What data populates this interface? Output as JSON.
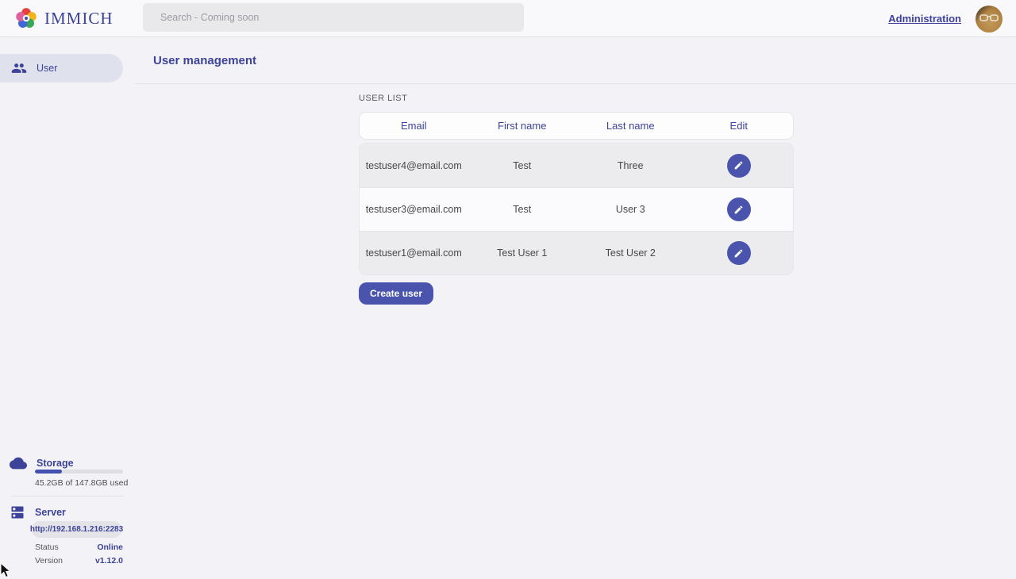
{
  "topbar": {
    "brand": "IMMICH",
    "search_placeholder": "Search - Coming soon",
    "admin_link": "Administration"
  },
  "sidebar": {
    "items": [
      {
        "label": "User"
      }
    ],
    "storage": {
      "title": "Storage",
      "usage_text": "45.2GB of 147.8GB used",
      "percent_used": 30.6
    },
    "server": {
      "title": "Server",
      "url": "http://192.168.1.216:2283",
      "status_label": "Status",
      "status_value": "Online",
      "version_label": "Version",
      "version_value": "v1.12.0"
    }
  },
  "main": {
    "page_title": "User management",
    "section_title": "USER LIST",
    "table": {
      "columns": [
        "Email",
        "First name",
        "Last name",
        "Edit"
      ],
      "rows": [
        {
          "email": "testuser4@email.com",
          "first_name": "Test",
          "last_name": "Three"
        },
        {
          "email": "testuser3@email.com",
          "first_name": "Test",
          "last_name": "User 3"
        },
        {
          "email": "testuser1@email.com",
          "first_name": "Test User 1",
          "last_name": "Test User 2"
        }
      ]
    },
    "create_button": "Create user"
  },
  "colors": {
    "accent": "#4250af",
    "accent_button": "#4a54ad",
    "status_online": "#3d4398"
  }
}
